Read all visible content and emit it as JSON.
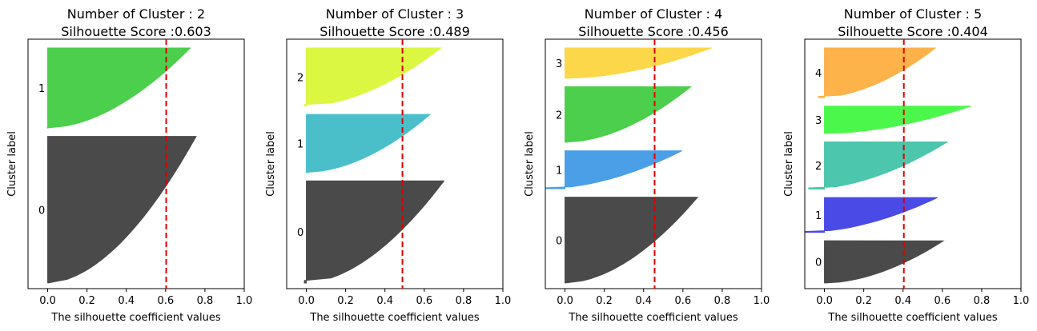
{
  "chart_data": [
    {
      "type": "silhouette",
      "title_line1": "Number of Cluster : 2",
      "title_line2": "Silhouette Score :0.603",
      "xlabel": "The silhouette coefficient values",
      "ylabel": "Cluster label",
      "xlim": [
        -0.1,
        1.0
      ],
      "xticks": [
        "0.0",
        "0.2",
        "0.4",
        "0.6",
        "0.8",
        "1.0"
      ],
      "score": 0.603,
      "clusters": [
        {
          "label": "0",
          "color": "#4a4a4a",
          "size": 0.55,
          "max": 0.755,
          "min": 0.0
        },
        {
          "label": "1",
          "color": "#4ccf4c",
          "size": 0.3,
          "max": 0.725,
          "min": 0.0
        }
      ]
    },
    {
      "type": "silhouette",
      "title_line1": "Number of Cluster : 3",
      "title_line2": "Silhouette Score :0.489",
      "xlabel": "The silhouette coefficient values",
      "ylabel": "Cluster label",
      "xlim": [
        -0.1,
        1.0
      ],
      "xticks": [
        "0.0",
        "0.2",
        "0.4",
        "0.6",
        "0.8",
        "1.0"
      ],
      "score": 0.489,
      "clusters": [
        {
          "label": "0",
          "color": "#4a4a4a",
          "size": 0.37,
          "max": 0.7,
          "min": -0.01
        },
        {
          "label": "1",
          "color": "#4bbfc9",
          "size": 0.21,
          "max": 0.63,
          "min": 0.0
        },
        {
          "label": "2",
          "color": "#dbf742",
          "size": 0.21,
          "max": 0.685,
          "min": -0.01
        }
      ]
    },
    {
      "type": "silhouette",
      "title_line1": "Number of Cluster : 4",
      "title_line2": "Silhouette Score :0.456",
      "xlabel": "The silhouette coefficient values",
      "ylabel": "Cluster label",
      "xlim": [
        -0.1,
        1.0
      ],
      "xticks": [
        "0.0",
        "0.2",
        "0.4",
        "0.6",
        "0.8",
        "1.0"
      ],
      "score": 0.456,
      "clusters": [
        {
          "label": "0",
          "color": "#4a4a4a",
          "size": 0.34,
          "max": 0.675,
          "min": 0.0
        },
        {
          "label": "1",
          "color": "#4a9fe6",
          "size": 0.15,
          "max": 0.595,
          "min": -0.1
        },
        {
          "label": "2",
          "color": "#4ccf4c",
          "size": 0.22,
          "max": 0.64,
          "min": 0.0
        },
        {
          "label": "3",
          "color": "#fdd74a",
          "size": 0.12,
          "max": 0.745,
          "min": 0.0
        }
      ]
    },
    {
      "type": "silhouette",
      "title_line1": "Number of Cluster : 5",
      "title_line2": "Silhouette Score :0.404",
      "xlabel": "The silhouette coefficient values",
      "ylabel": "Cluster label",
      "xlim": [
        -0.1,
        1.0
      ],
      "xticks": [
        "0.0",
        "0.2",
        "0.4",
        "0.6",
        "0.8",
        "1.0"
      ],
      "score": 0.404,
      "clusters": [
        {
          "label": "0",
          "color": "#4a4a4a",
          "size": 0.17,
          "max": 0.605,
          "min": 0.0
        },
        {
          "label": "1",
          "color": "#4a4ae6",
          "size": 0.14,
          "max": 0.575,
          "min": -0.1
        },
        {
          "label": "2",
          "color": "#4cc6ac",
          "size": 0.19,
          "max": 0.625,
          "min": -0.08
        },
        {
          "label": "3",
          "color": "#4cf74c",
          "size": 0.11,
          "max": 0.745,
          "min": 0.0
        },
        {
          "label": "4",
          "color": "#fdb24a",
          "size": 0.2,
          "max": 0.565,
          "min": -0.03
        }
      ]
    }
  ]
}
